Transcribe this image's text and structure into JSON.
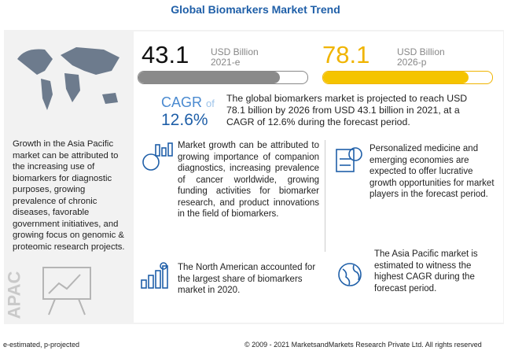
{
  "header": {
    "title": "Global Biomarkers Market Trend"
  },
  "market": {
    "start": {
      "value": "43.1",
      "unit": "USD Billion",
      "year": "2021-e"
    },
    "end": {
      "value": "78.1",
      "unit": "USD Billion",
      "year": "2026-p"
    }
  },
  "cagr": {
    "label": "CAGR",
    "of": "of",
    "value": "12.6%"
  },
  "summary": "The global biomarkers market is projected to reach USD  78.1 billion by 2026 from USD 43.1 billion in 2021, at a CAGR of 12.6% during the forecast period.",
  "left_panel": {
    "text": "Growth in the Asia Pacific market can be attributed to the increasing use of biomarkers for diagnostic purposes, growing prevalence of chronic diseases, favorable government initiatives, and growing focus on genomic & proteomic research projects.",
    "region": "APAC"
  },
  "highlights": [
    "Market growth can be attributed to growing importance of companion diagnostics, increasing prevalence of cancer worldwide, growing funding activities for biomarker research, and product innovations in the field of biomarkers.",
    "Personalized medicine and emerging economies are expected to offer lucrative growth opportunities for market players in the forecast period.",
    "The North American accounted for the largest share of  biomarkers market in 2020.",
    "The Asia Pacific market is estimated to witness the highest CAGR during the forecast period."
  ],
  "footer": {
    "note": "e-estimated, p-projected",
    "copyright": "© 2009 - 2021 MarketsandMarkets Research Private Ltd. All rights reserved"
  }
}
